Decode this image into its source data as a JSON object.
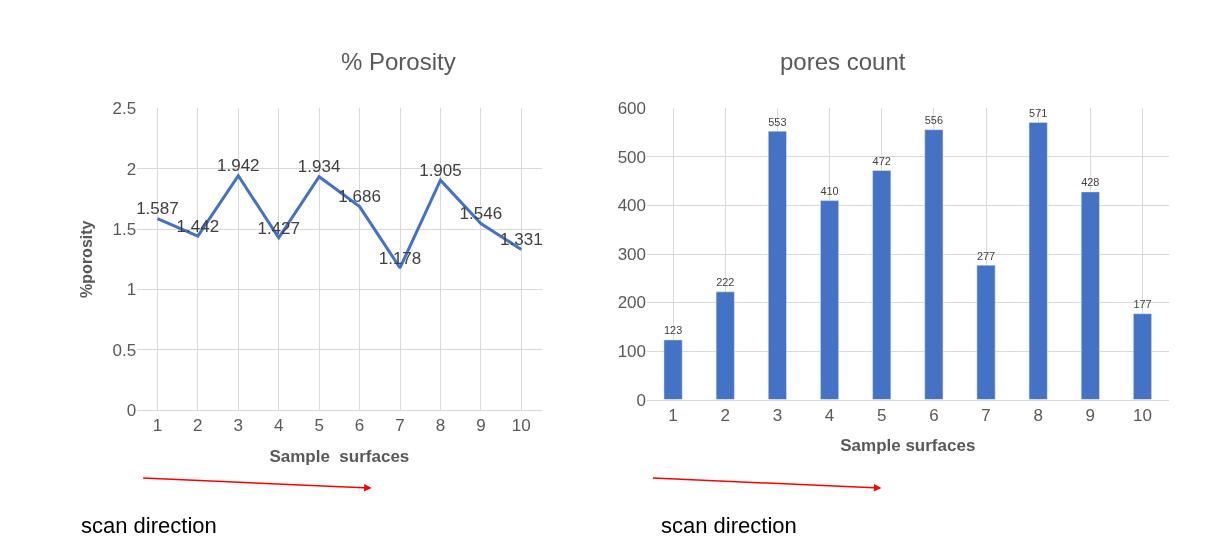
{
  "chart_data": [
    {
      "type": "line",
      "title": "% Porosity",
      "xlabel": "Sample  surfaces",
      "ylabel": "%porosity",
      "categories": [
        "1",
        "2",
        "3",
        "4",
        "5",
        "6",
        "7",
        "8",
        "9",
        "10"
      ],
      "values": [
        1.587,
        1.442,
        1.942,
        1.427,
        1.934,
        1.686,
        1.178,
        1.905,
        1.546,
        1.331
      ],
      "color": "#4472c4",
      "ylim": [
        0,
        2.5
      ],
      "yticks": [
        0,
        0.5,
        1,
        1.5,
        2,
        2.5
      ],
      "grid": true,
      "data_labels": true,
      "marker": "none",
      "line_style": "solid",
      "annotations": [
        "scan direction"
      ]
    },
    {
      "type": "bar",
      "title": "pores count",
      "xlabel": "Sample surfaces",
      "categories": [
        "1",
        "2",
        "3",
        "4",
        "5",
        "6",
        "7",
        "8",
        "9",
        "10"
      ],
      "values": [
        123,
        222,
        553,
        410,
        472,
        556,
        277,
        571,
        428,
        177
      ],
      "color": "#4472c4",
      "ylim": [
        0,
        600
      ],
      "yticks": [
        0,
        100,
        200,
        300,
        400,
        500,
        600
      ],
      "grid": true,
      "data_labels": true,
      "annotations": [
        "scan direction"
      ]
    }
  ]
}
